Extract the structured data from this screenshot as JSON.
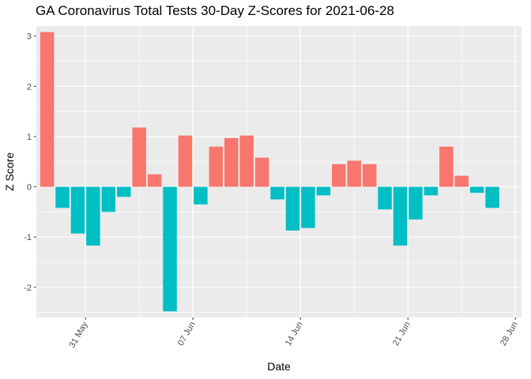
{
  "chart_data": {
    "type": "bar",
    "title": "GA Coronavirus Total Tests 30-Day Z-Scores for 2021-06-28",
    "xlabel": "Date",
    "ylabel": "Z Score",
    "ylim": [
      -2.6,
      3.2
    ],
    "y_ticks": [
      -2,
      -1,
      0,
      1,
      2,
      3
    ],
    "x_ticks": [
      "31 May",
      "07 Jun",
      "14 Jun",
      "21 Jun",
      "28 Jun"
    ],
    "x_tick_offsets": [
      2.5,
      9.5,
      16.5,
      23.5,
      30.5
    ],
    "x_range": [
      -0.7,
      30.9
    ],
    "legend": "none",
    "colors": {
      "positive": "#f8766d",
      "negative": "#00bfc4",
      "panel": "#ebebeb",
      "grid": "#ffffff"
    },
    "categories": [
      "2021-05-29",
      "2021-05-30",
      "2021-05-31",
      "2021-06-01",
      "2021-06-02",
      "2021-06-03",
      "2021-06-04",
      "2021-06-05",
      "2021-06-06",
      "2021-06-07",
      "2021-06-08",
      "2021-06-09",
      "2021-06-10",
      "2021-06-11",
      "2021-06-12",
      "2021-06-13",
      "2021-06-14",
      "2021-06-15",
      "2021-06-16",
      "2021-06-17",
      "2021-06-18",
      "2021-06-19",
      "2021-06-20",
      "2021-06-21",
      "2021-06-22",
      "2021-06-23",
      "2021-06-24",
      "2021-06-25",
      "2021-06-26",
      "2021-06-27",
      "2021-06-28"
    ],
    "values": [
      3.08,
      -0.42,
      -0.93,
      -1.17,
      -0.5,
      -0.2,
      1.18,
      0.25,
      -2.48,
      1.02,
      -0.35,
      0.8,
      0.97,
      1.02,
      0.58,
      -0.25,
      -0.87,
      -0.82,
      -0.17,
      0.45,
      0.52,
      0.45,
      -0.45,
      -1.17,
      -0.65,
      -0.17,
      0.8,
      0.22,
      -0.12,
      -0.42,
      0.0
    ]
  }
}
